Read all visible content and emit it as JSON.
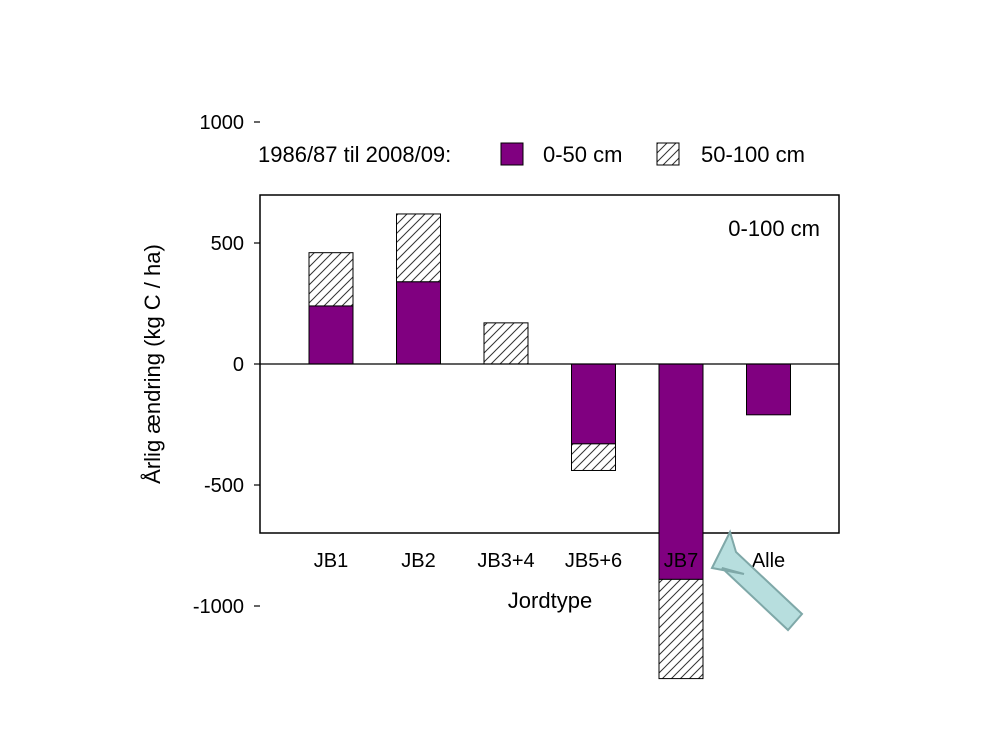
{
  "chart_data": {
    "type": "bar",
    "stacked": true,
    "legend_title": "1986/87 til 2008/09:",
    "legend_placement": "top",
    "annotation": "0-100 cm",
    "xlabel": "Jordtype",
    "ylabel": "Årlig ændring (kg C / ha)",
    "ylim": [
      -1400,
      1400
    ],
    "yticks": [
      1000,
      500,
      0,
      -500,
      -1000
    ],
    "grid": false,
    "categories": [
      "JB1",
      "JB2",
      "JB3+4",
      "JB5+6",
      "JB7",
      "Alle"
    ],
    "series": [
      {
        "name": "0-50 cm",
        "color": "#800080",
        "pattern": "solid",
        "values": [
          240,
          340,
          0,
          -330,
          -890,
          -210
        ]
      },
      {
        "name": "50-100 cm",
        "color": "#ffffff",
        "pattern": "hatched",
        "values": [
          220,
          280,
          170,
          -110,
          -410,
          0
        ]
      }
    ],
    "arrow": {
      "points_to": "JB7",
      "color": "#b7dede"
    }
  }
}
